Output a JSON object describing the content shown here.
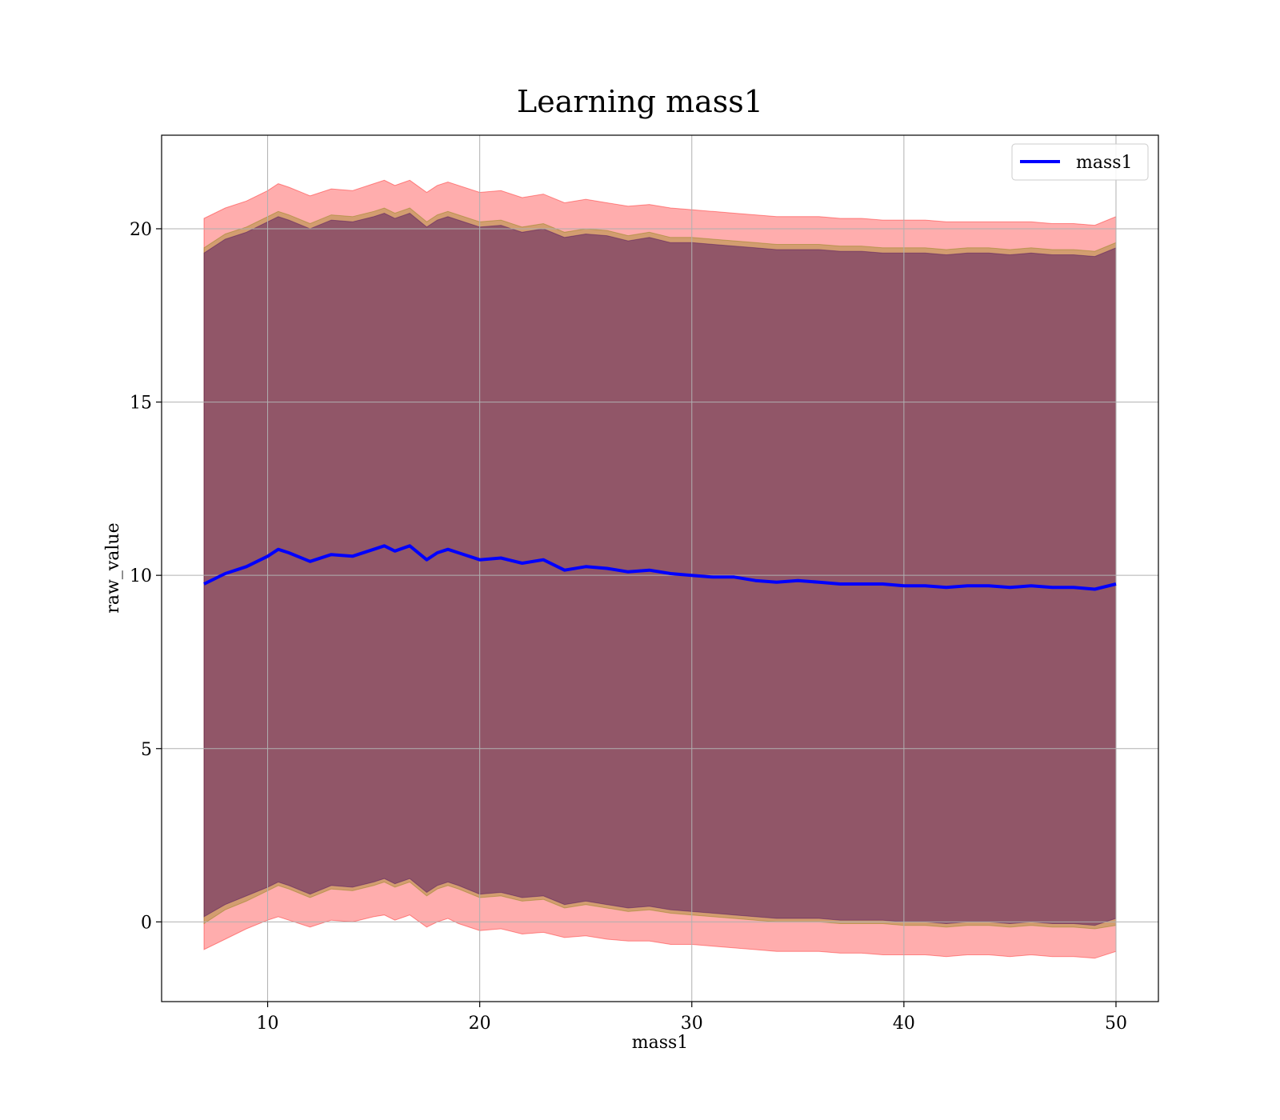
{
  "chart_data": {
    "type": "line",
    "title": "Learning mass1",
    "xlabel": "mass1",
    "ylabel": "raw_value",
    "xlim": [
      5,
      52
    ],
    "ylim": [
      -2.3,
      22.7
    ],
    "xticks": [
      10,
      20,
      30,
      40,
      50
    ],
    "yticks": [
      0,
      5,
      10,
      15,
      20
    ],
    "grid": true,
    "legend_position": "top-right",
    "series": [
      {
        "name": "mass1",
        "color": "#0000ff",
        "x": [
          7,
          8,
          9,
          10,
          10.5,
          11,
          12,
          13,
          14,
          15,
          15.5,
          16,
          16.7,
          17.5,
          18,
          18.5,
          19,
          20,
          21,
          22,
          23,
          24,
          25,
          26,
          27,
          28,
          29,
          30,
          31,
          32,
          33,
          34,
          35,
          36,
          37,
          38,
          39,
          40,
          41,
          42,
          43,
          44,
          45,
          46,
          47,
          48,
          49,
          50
        ],
        "y": [
          9.75,
          10.05,
          10.25,
          10.55,
          10.75,
          10.65,
          10.4,
          10.6,
          10.55,
          10.75,
          10.85,
          10.7,
          10.85,
          10.45,
          10.65,
          10.75,
          10.65,
          10.45,
          10.5,
          10.35,
          10.45,
          10.15,
          10.25,
          10.2,
          10.1,
          10.15,
          10.05,
          10.0,
          9.95,
          9.95,
          9.85,
          9.8,
          9.85,
          9.8,
          9.75,
          9.75,
          9.75,
          9.7,
          9.7,
          9.65,
          9.7,
          9.7,
          9.65,
          9.7,
          9.65,
          9.65,
          9.6,
          9.75
        ]
      }
    ],
    "bands": [
      {
        "color": "#ff0000",
        "opacity": 0.32,
        "lower": [
          -0.8,
          -0.5,
          -0.2,
          0.05,
          0.15,
          0.05,
          -0.15,
          0.05,
          0.0,
          0.15,
          0.2,
          0.05,
          0.2,
          -0.15,
          0.0,
          0.1,
          -0.05,
          -0.25,
          -0.2,
          -0.35,
          -0.3,
          -0.45,
          -0.4,
          -0.5,
          -0.55,
          -0.55,
          -0.65,
          -0.65,
          -0.7,
          -0.75,
          -0.8,
          -0.85,
          -0.85,
          -0.85,
          -0.9,
          -0.9,
          -0.95,
          -0.95,
          -0.95,
          -1.0,
          -0.95,
          -0.95,
          -1.0,
          -0.95,
          -1.0,
          -1.0,
          -1.05,
          -0.85
        ],
        "upper": [
          20.3,
          20.6,
          20.8,
          21.1,
          21.3,
          21.2,
          20.95,
          21.15,
          21.1,
          21.3,
          21.4,
          21.25,
          21.4,
          21.05,
          21.25,
          21.35,
          21.25,
          21.05,
          21.1,
          20.9,
          21.0,
          20.75,
          20.85,
          20.75,
          20.65,
          20.7,
          20.6,
          20.55,
          20.5,
          20.45,
          20.4,
          20.35,
          20.35,
          20.35,
          20.3,
          20.3,
          20.25,
          20.25,
          20.25,
          20.2,
          20.2,
          20.2,
          20.2,
          20.2,
          20.15,
          20.15,
          20.1,
          20.35
        ]
      },
      {
        "color": "#808000",
        "opacity": 0.35,
        "lower": [
          -0.05,
          0.35,
          0.6,
          0.9,
          1.05,
          0.95,
          0.7,
          0.95,
          0.9,
          1.05,
          1.15,
          1.0,
          1.15,
          0.75,
          0.95,
          1.05,
          0.95,
          0.7,
          0.75,
          0.6,
          0.65,
          0.4,
          0.5,
          0.4,
          0.3,
          0.35,
          0.25,
          0.2,
          0.15,
          0.1,
          0.05,
          0.0,
          0.0,
          0.0,
          -0.05,
          -0.05,
          -0.05,
          -0.1,
          -0.1,
          -0.15,
          -0.1,
          -0.1,
          -0.15,
          -0.1,
          -0.15,
          -0.15,
          -0.2,
          -0.1
        ],
        "upper": [
          19.45,
          19.85,
          20.05,
          20.35,
          20.5,
          20.4,
          20.15,
          20.4,
          20.35,
          20.5,
          20.6,
          20.45,
          20.6,
          20.2,
          20.4,
          20.5,
          20.4,
          20.2,
          20.25,
          20.05,
          20.15,
          19.9,
          20.0,
          19.95,
          19.8,
          19.9,
          19.75,
          19.75,
          19.7,
          19.65,
          19.6,
          19.55,
          19.55,
          19.55,
          19.5,
          19.5,
          19.45,
          19.45,
          19.45,
          19.4,
          19.45,
          19.45,
          19.4,
          19.45,
          19.4,
          19.4,
          19.35,
          19.6
        ]
      },
      {
        "color": "#400060",
        "opacity": 0.45,
        "lower": [
          0.15,
          0.5,
          0.75,
          1.0,
          1.15,
          1.05,
          0.8,
          1.05,
          1.0,
          1.15,
          1.25,
          1.1,
          1.25,
          0.85,
          1.05,
          1.15,
          1.05,
          0.8,
          0.85,
          0.7,
          0.75,
          0.5,
          0.6,
          0.5,
          0.4,
          0.45,
          0.35,
          0.3,
          0.25,
          0.2,
          0.15,
          0.1,
          0.1,
          0.1,
          0.05,
          0.05,
          0.05,
          0.0,
          0.0,
          -0.05,
          0.0,
          0.0,
          -0.05,
          0.0,
          -0.05,
          -0.05,
          -0.1,
          0.1
        ],
        "upper": [
          19.3,
          19.7,
          19.9,
          20.2,
          20.35,
          20.25,
          20.0,
          20.25,
          20.2,
          20.35,
          20.45,
          20.3,
          20.45,
          20.05,
          20.25,
          20.35,
          20.25,
          20.05,
          20.1,
          19.9,
          20.0,
          19.75,
          19.85,
          19.8,
          19.65,
          19.75,
          19.6,
          19.6,
          19.55,
          19.5,
          19.45,
          19.4,
          19.4,
          19.4,
          19.35,
          19.35,
          19.3,
          19.3,
          19.3,
          19.25,
          19.3,
          19.3,
          19.25,
          19.3,
          19.25,
          19.25,
          19.2,
          19.45
        ]
      }
    ]
  }
}
